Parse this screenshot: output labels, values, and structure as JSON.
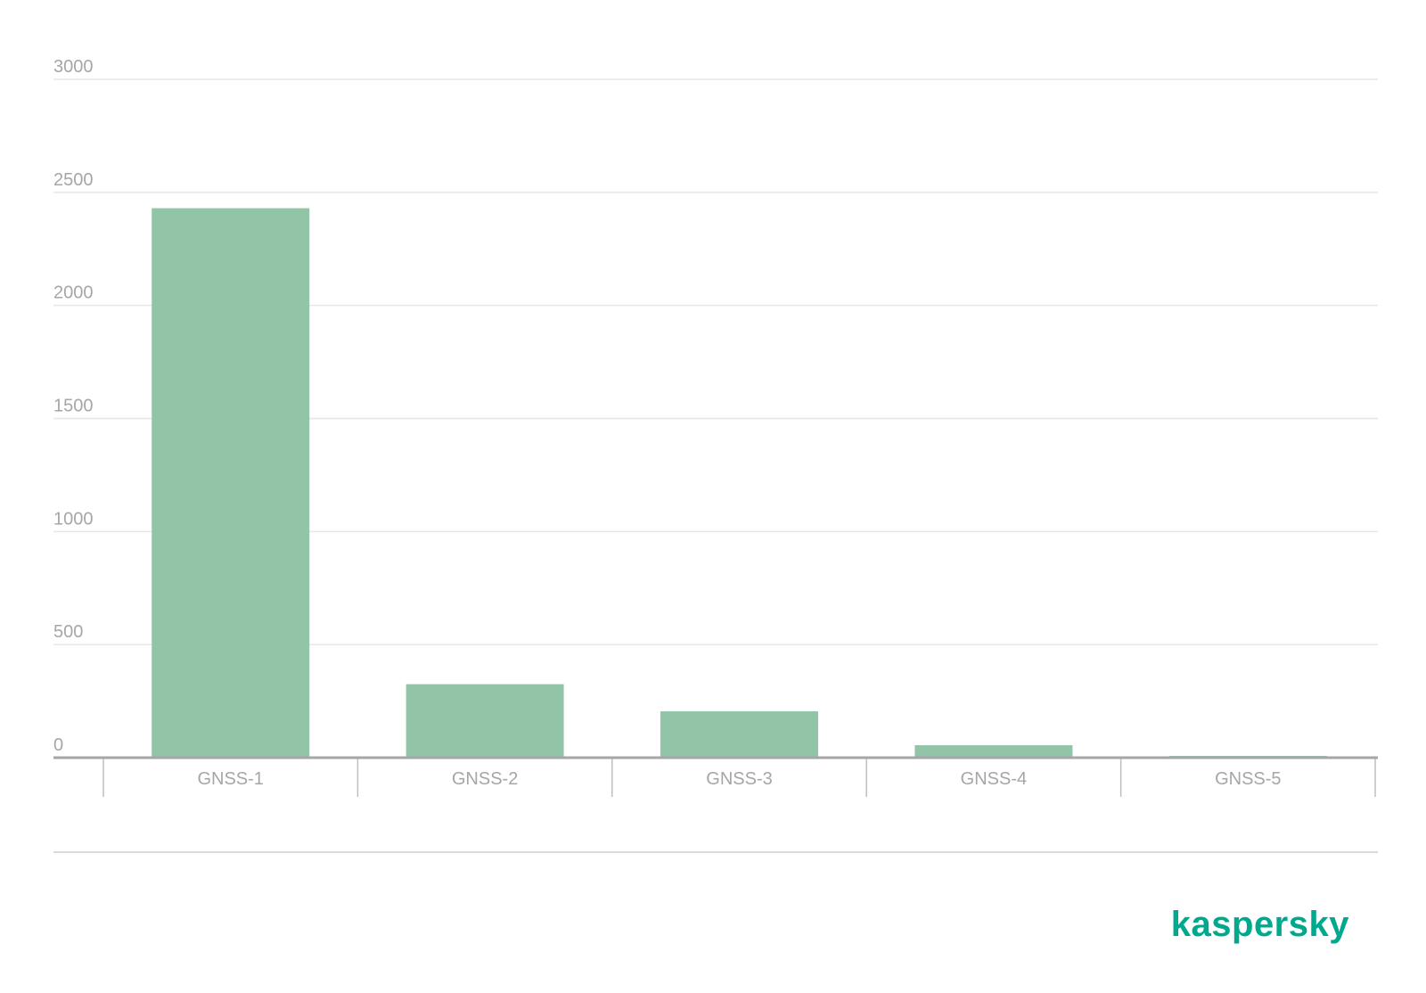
{
  "chart_data": {
    "type": "bar",
    "categories": [
      "GNSS-1",
      "GNSS-2",
      "GNSS-3",
      "GNSS-4",
      "GNSS-5"
    ],
    "values": [
      2430,
      325,
      205,
      55,
      8
    ],
    "color": "#92c4a8",
    "ylim": [
      0,
      3000
    ],
    "yticks": [
      0,
      500,
      1000,
      1500,
      2000,
      2500,
      3000
    ],
    "grid": true
  },
  "logo": "kaspersky"
}
